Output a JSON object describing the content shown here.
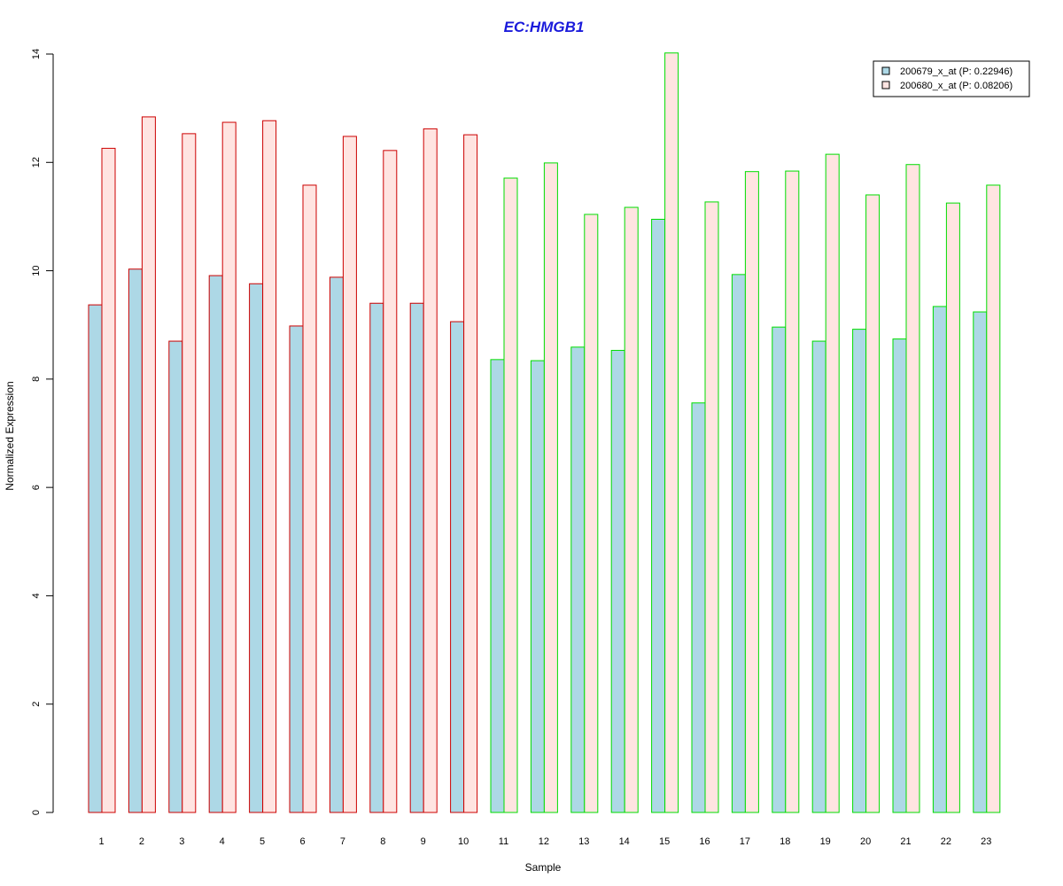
{
  "chart_data": {
    "type": "bar",
    "title": "EC:HMGB1",
    "title_color": "#1a1adb",
    "xlabel": "Sample",
    "ylabel": "Normalized Expression",
    "ylim": [
      0,
      14
    ],
    "yticks": [
      0,
      2,
      4,
      6,
      8,
      10,
      12,
      14
    ],
    "grid": false,
    "legend_position": "top-right",
    "categories": [
      "1",
      "2",
      "3",
      "4",
      "5",
      "6",
      "7",
      "8",
      "9",
      "10",
      "11",
      "12",
      "13",
      "14",
      "15",
      "16",
      "17",
      "18",
      "19",
      "20",
      "21",
      "22",
      "23"
    ],
    "group_colors": [
      "#cc0000",
      "#cc0000",
      "#cc0000",
      "#cc0000",
      "#cc0000",
      "#cc0000",
      "#cc0000",
      "#cc0000",
      "#cc0000",
      "#cc0000",
      "#00dd00",
      "#00dd00",
      "#00dd00",
      "#00dd00",
      "#00dd00",
      "#00dd00",
      "#00dd00",
      "#00dd00",
      "#00dd00",
      "#00dd00",
      "#00dd00",
      "#00dd00",
      "#00dd00"
    ],
    "series": [
      {
        "name": "200679_x_at (P: 0.22946)",
        "fill": "#add8e6",
        "values": [
          9.37,
          10.03,
          8.7,
          9.91,
          9.76,
          8.98,
          9.88,
          9.4,
          9.4,
          9.06,
          8.36,
          8.34,
          8.59,
          8.53,
          10.95,
          7.56,
          9.93,
          8.96,
          8.7,
          8.92,
          8.74,
          9.34,
          9.24
        ]
      },
      {
        "name": "200680_x_at (P: 0.08206)",
        "fill": "#ffe4e1",
        "values": [
          12.26,
          12.84,
          12.53,
          12.74,
          12.77,
          11.58,
          12.48,
          12.22,
          12.62,
          12.51,
          11.71,
          11.99,
          11.04,
          11.17,
          14.02,
          11.27,
          11.83,
          11.84,
          12.15,
          11.4,
          11.96,
          11.25,
          11.58
        ]
      }
    ]
  }
}
